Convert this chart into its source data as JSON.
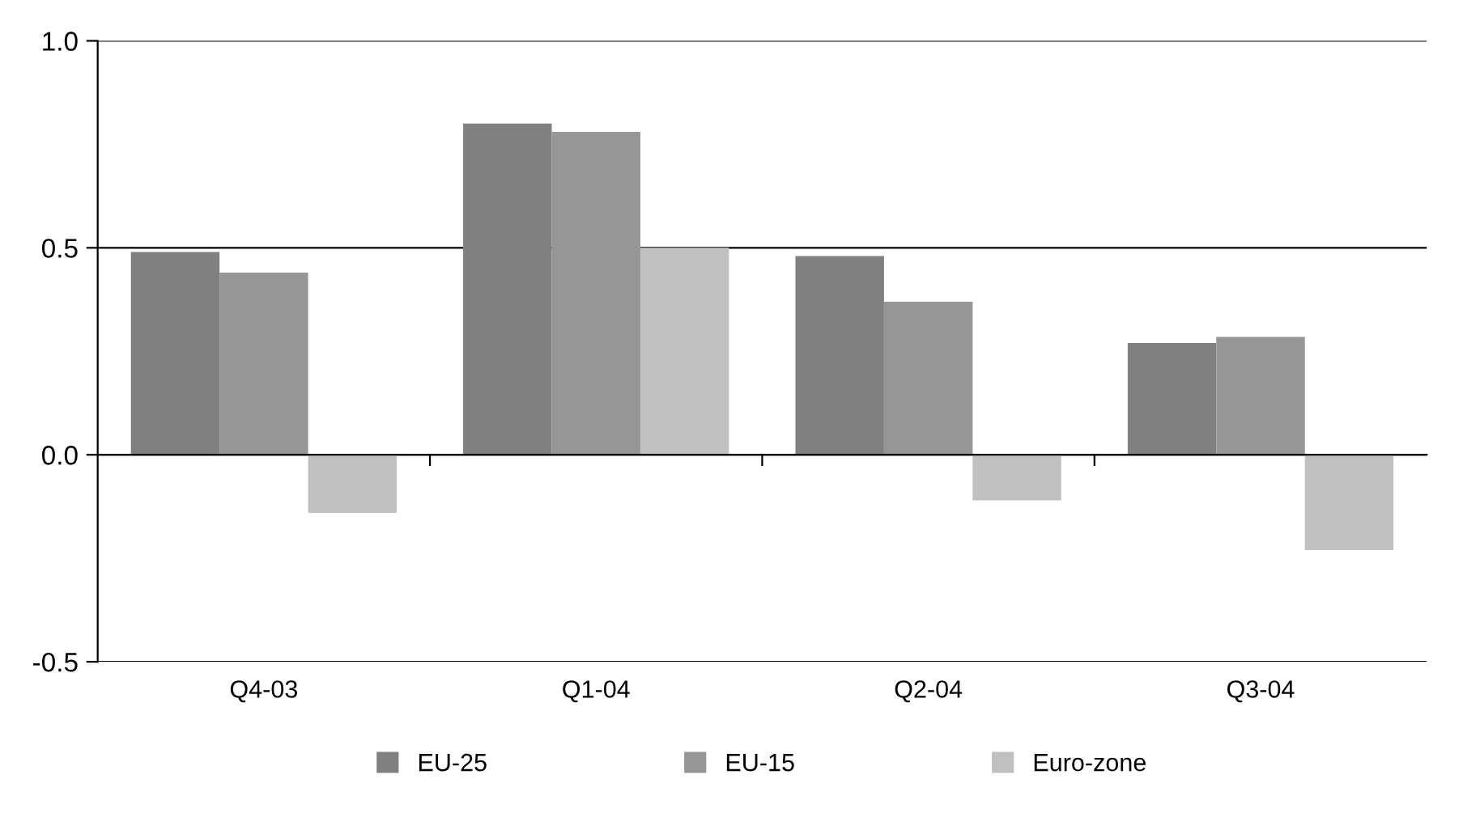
{
  "chart_data": {
    "type": "bar",
    "categories": [
      "Q4-03",
      "Q1-04",
      "Q2-04",
      "Q3-04"
    ],
    "series": [
      {
        "name": "EU-25",
        "color": "#808080",
        "values": [
          0.49,
          0.8,
          0.48,
          0.27
        ]
      },
      {
        "name": "EU-15",
        "color": "#969696",
        "values": [
          0.44,
          0.78,
          0.37,
          0.285
        ]
      },
      {
        "name": "Euro-zone",
        "color": "#c0c0c0",
        "values": [
          -0.14,
          0.5,
          -0.11,
          -0.23
        ]
      }
    ],
    "ylim": [
      -0.5,
      1.0
    ],
    "yticks": [
      {
        "value": -0.5,
        "label": "-0.5"
      },
      {
        "value": 0,
        "label": "0.0"
      },
      {
        "value": 0.5,
        "label": "0.5"
      },
      {
        "value": 1.0,
        "label": "1.0"
      }
    ],
    "grid": "y",
    "legend": "bottom"
  }
}
